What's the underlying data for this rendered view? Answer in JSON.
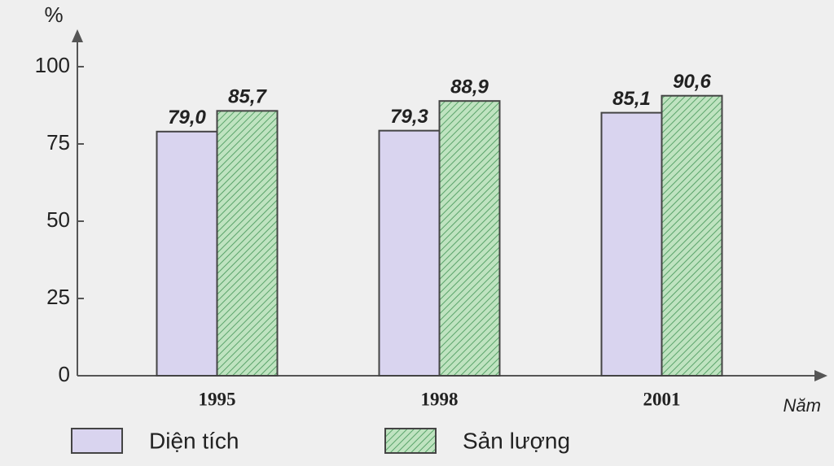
{
  "chart_data": {
    "type": "bar",
    "y_label": "%",
    "x_label": "Năm",
    "categories": [
      "1995",
      "1998",
      "2001"
    ],
    "series": [
      {
        "name": "Diện tích",
        "color": "#d9d4ef",
        "values": [
          79.0,
          79.3,
          85.1
        ],
        "value_labels": [
          "79,0",
          "79,3",
          "85,1"
        ]
      },
      {
        "name": "Sản lượng",
        "color": "#bfe3c0",
        "hatch": true,
        "values": [
          85.7,
          88.9,
          90.6
        ],
        "value_labels": [
          "85,7",
          "88,9",
          "90,6"
        ]
      }
    ],
    "ylim": [
      0,
      110
    ],
    "yticks": [
      0,
      25,
      50,
      75,
      100
    ]
  }
}
